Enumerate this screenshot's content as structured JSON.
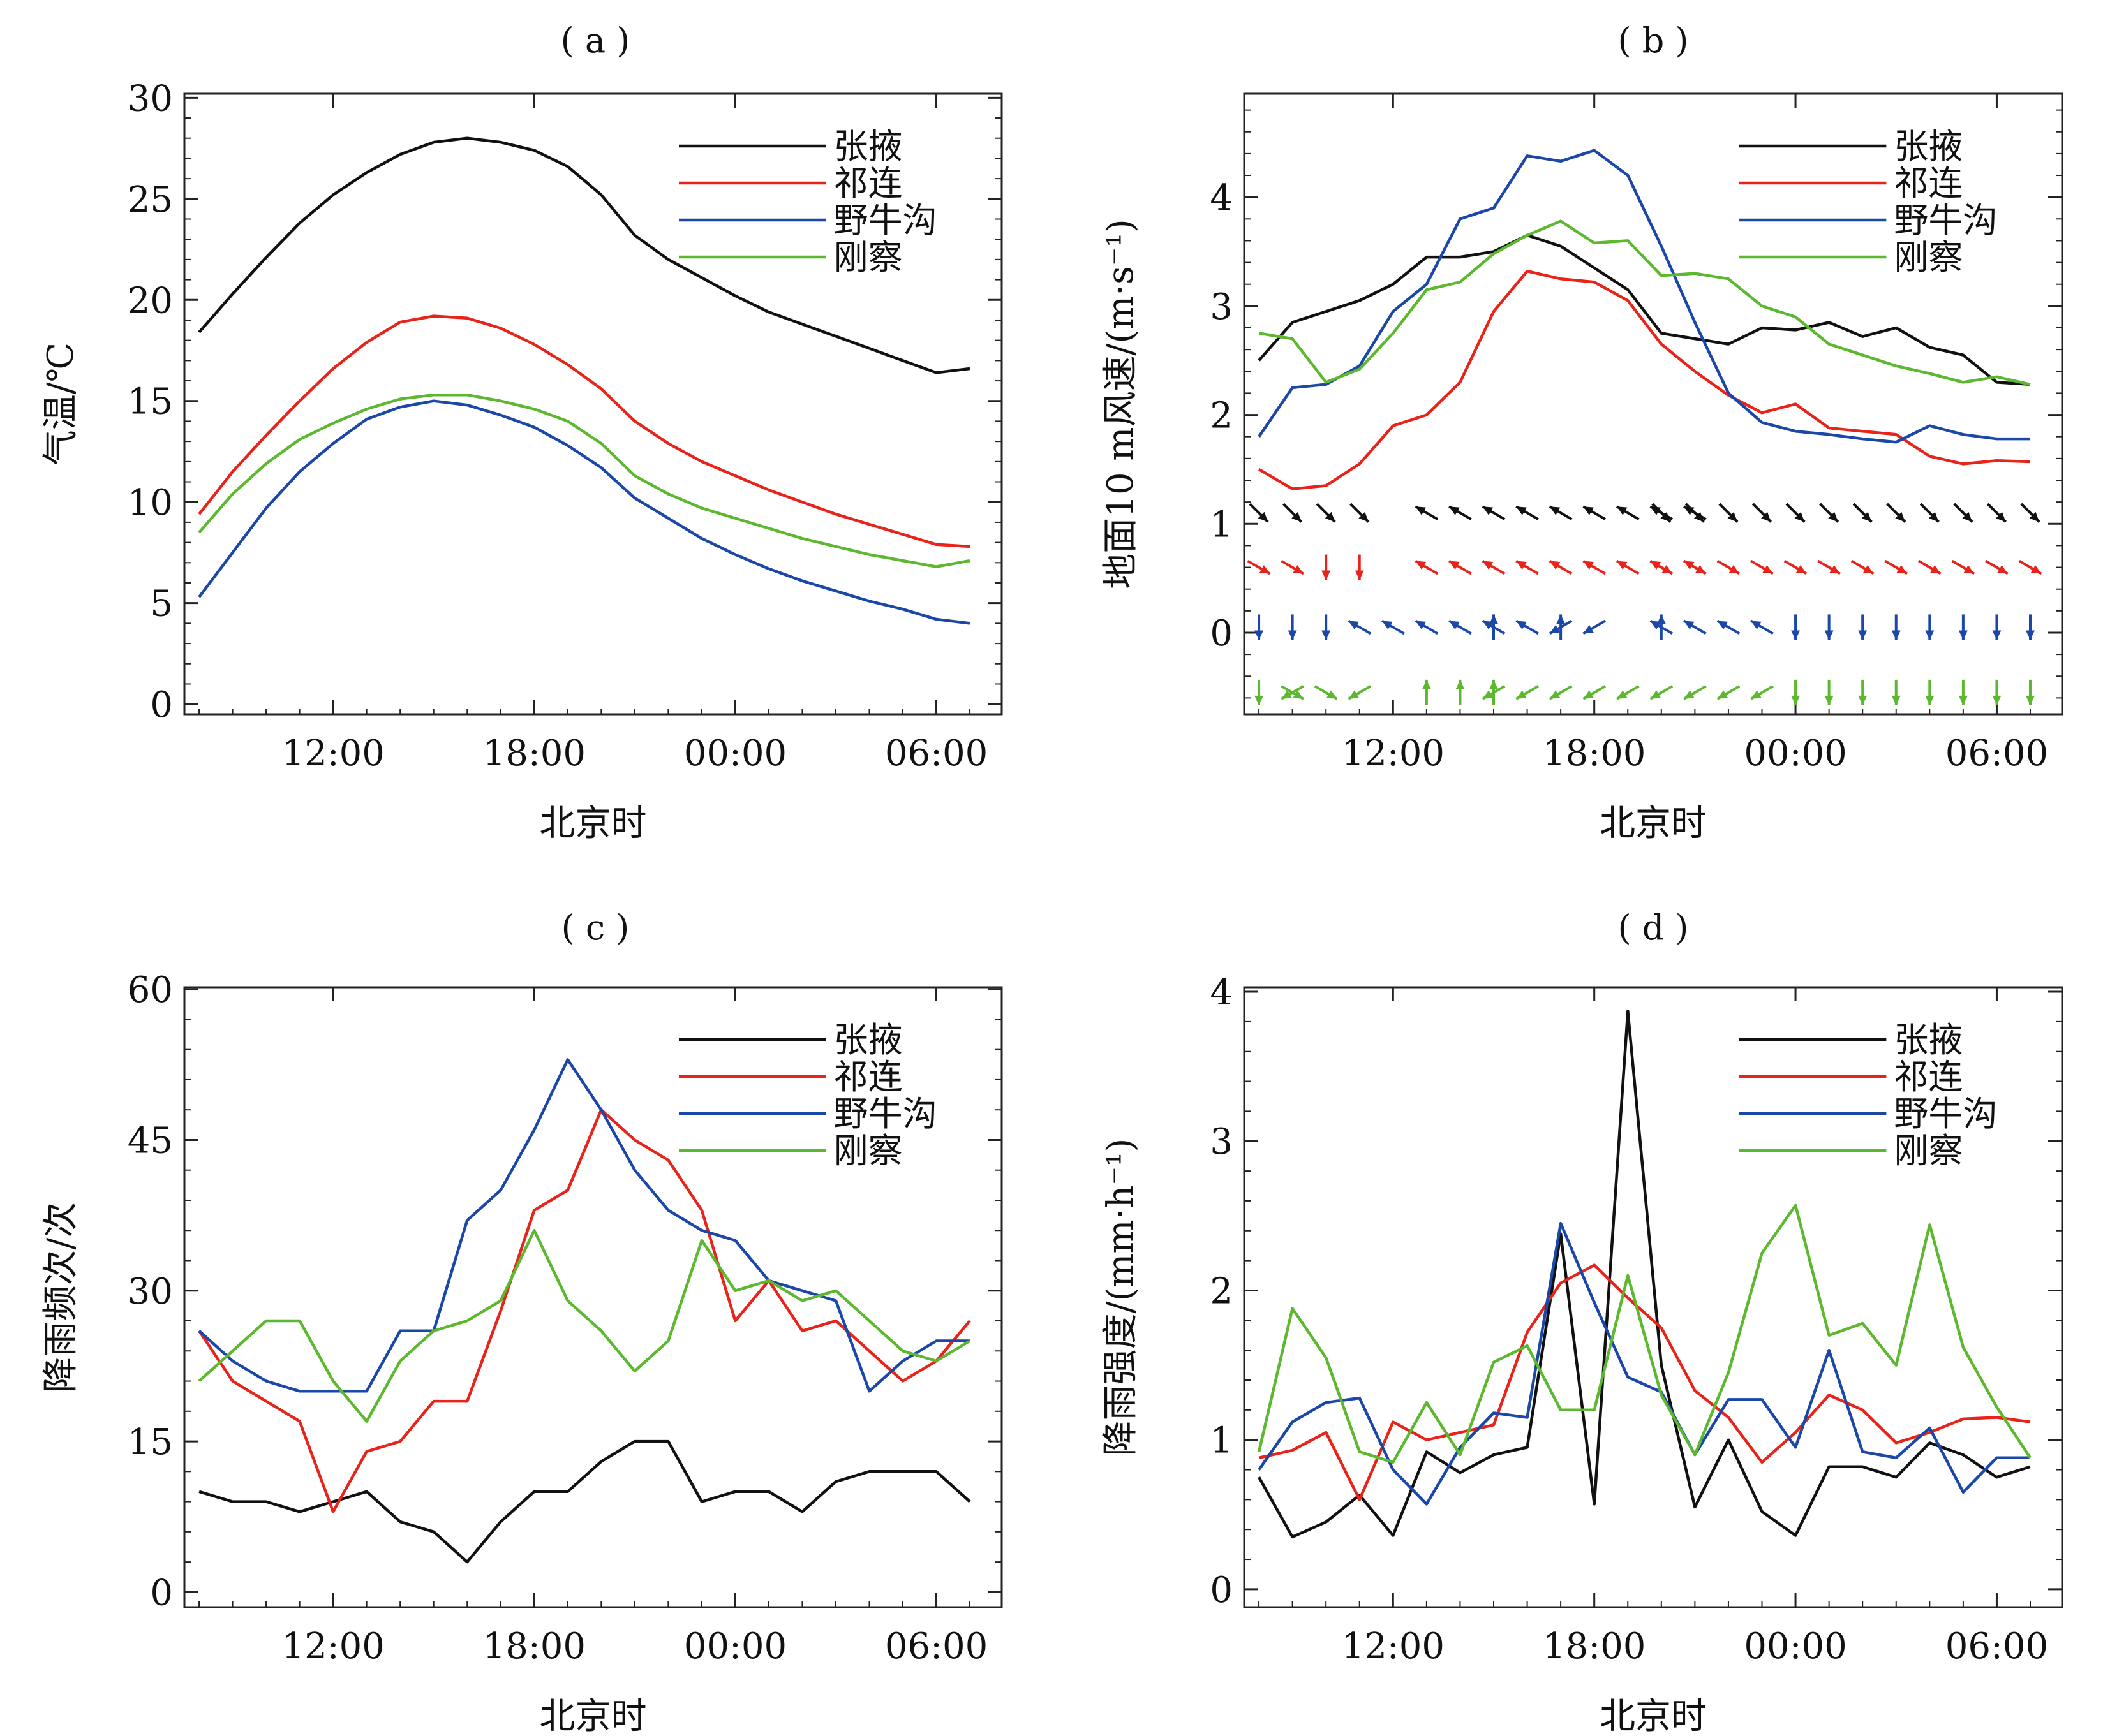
{
  "colors": {
    "张掖": "#111111",
    "祁连": "#e8231a",
    "野牛沟": "#1a47a8",
    "刚察": "#5cb82e"
  },
  "chart_data": [
    {
      "id": "a",
      "panel_label": "( a )",
      "type": "line",
      "xlabel": "北京时",
      "ylabel": "气温/℃",
      "x_ticks": [
        "12:00",
        "18:00",
        "00:00",
        "06:00"
      ],
      "y_ticks": [
        "0",
        "5",
        "10",
        "15",
        "20",
        "25",
        "30"
      ],
      "ylim": [
        -0.5,
        30.2
      ],
      "legend": [
        "张掖",
        "祁连",
        "野牛沟",
        "刚察"
      ],
      "series": [
        {
          "name": "张掖",
          "values": [
            18.4,
            20.3,
            22.1,
            23.8,
            25.2,
            26.3,
            27.2,
            27.8,
            28.0,
            27.8,
            27.4,
            26.6,
            25.2,
            23.2,
            22.0,
            21.1,
            20.2,
            19.4,
            18.8,
            18.2,
            17.6,
            17.0,
            16.4,
            16.6
          ]
        },
        {
          "name": "祁连",
          "values": [
            9.4,
            11.5,
            13.3,
            15.0,
            16.6,
            17.9,
            18.9,
            19.2,
            19.1,
            18.6,
            17.8,
            16.8,
            15.6,
            14.0,
            12.9,
            12.0,
            11.3,
            10.6,
            10.0,
            9.4,
            8.9,
            8.4,
            7.9,
            7.8
          ]
        },
        {
          "name": "野牛沟",
          "values": [
            5.3,
            7.5,
            9.7,
            11.5,
            12.9,
            14.1,
            14.7,
            15.0,
            14.8,
            14.3,
            13.7,
            12.8,
            11.7,
            10.2,
            9.2,
            8.2,
            7.4,
            6.7,
            6.1,
            5.6,
            5.1,
            4.7,
            4.2,
            4.0
          ]
        },
        {
          "name": "刚察",
          "values": [
            8.5,
            10.4,
            11.9,
            13.1,
            13.9,
            14.6,
            15.1,
            15.3,
            15.3,
            15.0,
            14.6,
            14.0,
            12.9,
            11.3,
            10.4,
            9.7,
            9.2,
            8.7,
            8.2,
            7.8,
            7.4,
            7.1,
            6.8,
            7.1
          ]
        }
      ]
    },
    {
      "id": "b",
      "panel_label": "( b )",
      "type": "line",
      "xlabel": "北京时",
      "ylabel": "地面10 m风速/(m·s⁻¹)",
      "x_ticks": [
        "12:00",
        "18:00",
        "00:00",
        "06:00"
      ],
      "y_ticks": [
        "0",
        "1",
        "2",
        "3",
        "4"
      ],
      "ylim": [
        -0.75,
        4.95
      ],
      "legend": [
        "张掖",
        "祁连",
        "野牛沟",
        "刚察"
      ],
      "series": [
        {
          "name": "张掖",
          "values": [
            2.5,
            2.85,
            2.95,
            3.05,
            3.2,
            3.45,
            3.45,
            3.5,
            3.65,
            3.55,
            3.35,
            3.15,
            2.75,
            2.7,
            2.65,
            2.8,
            2.78,
            2.85,
            2.72,
            2.8,
            2.62,
            2.55,
            2.3,
            2.28
          ]
        },
        {
          "name": "祁连",
          "values": [
            1.5,
            1.32,
            1.35,
            1.55,
            1.9,
            2.0,
            2.3,
            2.95,
            3.32,
            3.25,
            3.22,
            3.05,
            2.65,
            2.4,
            2.18,
            2.02,
            2.1,
            1.88,
            1.85,
            1.82,
            1.62,
            1.55,
            1.58,
            1.57
          ]
        },
        {
          "name": "野牛沟",
          "values": [
            1.8,
            2.25,
            2.28,
            2.45,
            2.95,
            3.2,
            3.8,
            3.9,
            4.38,
            4.33,
            4.43,
            4.2,
            3.55,
            2.85,
            2.2,
            1.93,
            1.85,
            1.82,
            1.78,
            1.75,
            1.9,
            1.82,
            1.78,
            1.78
          ]
        },
        {
          "name": "刚察",
          "values": [
            2.75,
            2.7,
            2.3,
            2.42,
            2.75,
            3.15,
            3.22,
            3.48,
            3.65,
            3.78,
            3.58,
            3.6,
            3.28,
            3.3,
            3.25,
            3.0,
            2.9,
            2.65,
            2.55,
            2.45,
            2.38,
            2.3,
            2.35,
            2.28
          ]
        }
      ],
      "wind_directions_deg": {
        "张掖": [
          [
            0,
            135
          ],
          [
            1,
            135
          ],
          [
            2,
            135
          ],
          [
            3,
            135
          ],
          [
            5,
            300
          ],
          [
            6,
            300
          ],
          [
            7,
            300
          ],
          [
            8,
            300
          ],
          [
            9,
            300
          ],
          [
            10,
            300
          ],
          [
            11,
            300
          ],
          [
            12,
            300
          ],
          [
            13,
            300
          ],
          [
            12,
            135
          ],
          [
            13,
            135
          ],
          [
            14,
            135
          ],
          [
            15,
            135
          ],
          [
            16,
            135
          ],
          [
            17,
            135
          ],
          [
            18,
            135
          ],
          [
            19,
            135
          ],
          [
            20,
            135
          ],
          [
            21,
            135
          ],
          [
            22,
            135
          ],
          [
            23,
            135
          ]
        ],
        "祁连": [
          [
            0,
            120
          ],
          [
            1,
            120
          ],
          [
            2,
            180
          ],
          [
            3,
            180
          ],
          [
            5,
            300
          ],
          [
            6,
            300
          ],
          [
            7,
            300
          ],
          [
            8,
            300
          ],
          [
            9,
            300
          ],
          [
            10,
            300
          ],
          [
            11,
            300
          ],
          [
            12,
            300
          ],
          [
            13,
            300
          ],
          [
            12,
            120
          ],
          [
            13,
            120
          ],
          [
            14,
            120
          ],
          [
            15,
            120
          ],
          [
            16,
            120
          ],
          [
            17,
            120
          ],
          [
            18,
            120
          ],
          [
            19,
            120
          ],
          [
            20,
            120
          ],
          [
            21,
            120
          ],
          [
            22,
            120
          ],
          [
            23,
            120
          ]
        ],
        "野牛沟": [
          [
            0,
            180
          ],
          [
            1,
            180
          ],
          [
            2,
            180
          ],
          [
            3,
            300
          ],
          [
            4,
            300
          ],
          [
            5,
            300
          ],
          [
            6,
            300
          ],
          [
            7,
            300
          ],
          [
            7,
            0
          ],
          [
            8,
            300
          ],
          [
            9,
            0
          ],
          [
            9,
            240
          ],
          [
            10,
            240
          ],
          [
            12,
            0
          ],
          [
            12,
            300
          ],
          [
            13,
            300
          ],
          [
            14,
            300
          ],
          [
            15,
            300
          ],
          [
            16,
            180
          ],
          [
            17,
            180
          ],
          [
            18,
            180
          ],
          [
            19,
            180
          ],
          [
            20,
            180
          ],
          [
            21,
            180
          ],
          [
            22,
            180
          ],
          [
            23,
            180
          ]
        ],
        "刚察": [
          [
            0,
            180
          ],
          [
            1,
            120
          ],
          [
            1,
            240
          ],
          [
            2,
            120
          ],
          [
            3,
            240
          ],
          [
            5,
            0
          ],
          [
            6,
            0
          ],
          [
            7,
            0
          ],
          [
            7,
            240
          ],
          [
            8,
            240
          ],
          [
            9,
            240
          ],
          [
            10,
            240
          ],
          [
            11,
            240
          ],
          [
            12,
            240
          ],
          [
            13,
            240
          ],
          [
            14,
            240
          ],
          [
            15,
            240
          ],
          [
            16,
            180
          ],
          [
            17,
            180
          ],
          [
            18,
            180
          ],
          [
            19,
            180
          ],
          [
            20,
            180
          ],
          [
            21,
            180
          ],
          [
            22,
            180
          ],
          [
            23,
            180
          ]
        ]
      }
    },
    {
      "id": "c",
      "panel_label": "( c )",
      "type": "line",
      "xlabel": "北京时",
      "ylabel": "降雨频次/次",
      "x_ticks": [
        "12:00",
        "18:00",
        "00:00",
        "06:00"
      ],
      "y_ticks": [
        "0",
        "15",
        "30",
        "45",
        "60"
      ],
      "ylim": [
        -1.5,
        60.2
      ],
      "legend": [
        "张掖",
        "祁连",
        "野牛沟",
        "刚察"
      ],
      "series": [
        {
          "name": "张掖",
          "values": [
            10,
            9,
            9,
            8,
            9,
            10,
            7,
            6,
            3,
            7,
            10,
            10,
            13,
            15,
            15,
            9,
            10,
            10,
            8,
            11,
            12,
            12,
            12,
            9
          ]
        },
        {
          "name": "祁连",
          "values": [
            26,
            21,
            19,
            17,
            8,
            14,
            15,
            19,
            19,
            28,
            38,
            40,
            48,
            45,
            43,
            38,
            27,
            31,
            26,
            27,
            24,
            21,
            23,
            27
          ]
        },
        {
          "name": "野牛沟",
          "values": [
            26,
            23,
            21,
            20,
            20,
            20,
            26,
            26,
            37,
            40,
            46,
            53,
            48,
            42,
            38,
            36,
            35,
            31,
            30,
            29,
            20,
            23,
            25,
            25
          ]
        },
        {
          "name": "刚察",
          "values": [
            21,
            24,
            27,
            27,
            21,
            17,
            23,
            26,
            27,
            29,
            36,
            29,
            26,
            22,
            25,
            35,
            30,
            31,
            29,
            30,
            27,
            24,
            23,
            25
          ]
        }
      ]
    },
    {
      "id": "d",
      "panel_label": "( d )",
      "type": "line",
      "xlabel": "北京时",
      "ylabel": "降雨强度/(mm·h⁻¹)",
      "x_ticks": [
        "12:00",
        "18:00",
        "00:00",
        "06:00"
      ],
      "y_ticks": [
        "0",
        "1",
        "2",
        "3",
        "4"
      ],
      "ylim": [
        -0.12,
        4.03
      ],
      "legend": [
        "张掖",
        "祁连",
        "野牛沟",
        "刚察"
      ],
      "series": [
        {
          "name": "张掖",
          "values": [
            0.75,
            0.35,
            0.45,
            0.63,
            0.36,
            0.92,
            0.78,
            0.9,
            0.95,
            2.38,
            0.57,
            3.87,
            1.5,
            0.55,
            1.0,
            0.52,
            0.36,
            0.82,
            0.82,
            0.75,
            0.98,
            0.9,
            0.75,
            0.82
          ]
        },
        {
          "name": "祁连",
          "values": [
            0.88,
            0.93,
            1.05,
            0.6,
            1.12,
            1.0,
            1.05,
            1.1,
            1.72,
            2.05,
            2.17,
            1.95,
            1.75,
            1.33,
            1.15,
            0.85,
            1.05,
            1.3,
            1.2,
            0.98,
            1.05,
            1.14,
            1.15,
            1.12
          ]
        },
        {
          "name": "野牛沟",
          "values": [
            0.8,
            1.12,
            1.25,
            1.28,
            0.8,
            0.57,
            0.95,
            1.18,
            1.15,
            2.45,
            1.92,
            1.42,
            1.32,
            0.9,
            1.27,
            1.27,
            0.95,
            1.6,
            0.92,
            0.88,
            1.08,
            0.65,
            0.88,
            0.88
          ]
        },
        {
          "name": "刚察",
          "values": [
            0.92,
            1.88,
            1.55,
            0.92,
            0.85,
            1.25,
            0.9,
            1.52,
            1.63,
            1.2,
            1.2,
            2.1,
            1.3,
            0.9,
            1.45,
            2.25,
            2.57,
            1.7,
            1.78,
            1.5,
            2.44,
            1.62,
            1.22,
            0.88
          ]
        }
      ]
    }
  ]
}
